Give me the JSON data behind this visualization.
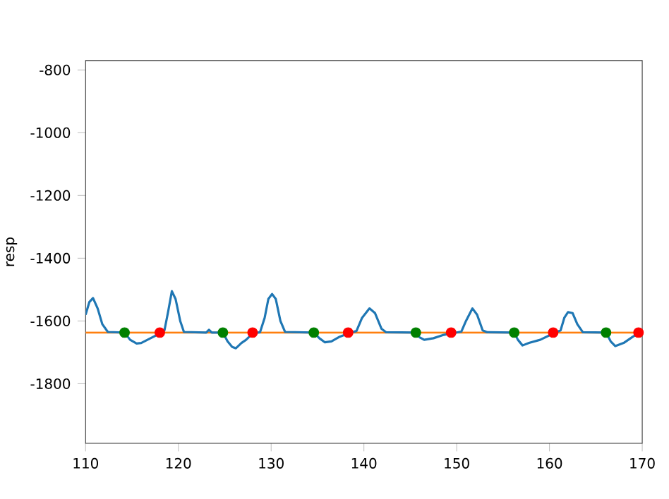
{
  "chart_data": {
    "type": "line",
    "ylabel": "resp",
    "xlim": [
      110,
      170
    ],
    "ylim": [
      -1990,
      -770
    ],
    "xticks": [
      110,
      120,
      130,
      140,
      150,
      160,
      170
    ],
    "yticks": [
      -800,
      -1000,
      -1200,
      -1400,
      -1600,
      -1800
    ],
    "grid": false,
    "ref_lines": [
      {
        "axis": "y",
        "value": -1637,
        "color": "#ff7f0e"
      }
    ],
    "series": [
      {
        "color": "#1f77b4",
        "marker": "none",
        "x": [
          110,
          110.4,
          110.8,
          111.3,
          111.8,
          112.4,
          114.2,
          114.8,
          115.5,
          116.0,
          117.0,
          118.0,
          118.5,
          118.9,
          119.3,
          119.7,
          120.2,
          120.6,
          123.0,
          123.3,
          123.6,
          124.8,
          125.3,
          125.8,
          126.2,
          126.8,
          127.3,
          128.0,
          128.8,
          129.3,
          129.7,
          130.1,
          130.5,
          131.0,
          131.5,
          134.6,
          135.2,
          135.8,
          136.5,
          137.4,
          138.3,
          139.2,
          139.8,
          140.6,
          141.2,
          141.9,
          142.4,
          145.6,
          146.0,
          146.5,
          147.5,
          148.5,
          149.4,
          150.5,
          151.0,
          151.7,
          152.2,
          152.8,
          153.3,
          156.2,
          156.6,
          157.1,
          157.8,
          159.0,
          160.4,
          161.2,
          161.6,
          162.0,
          162.5,
          163.0,
          163.6,
          166.1,
          166.6,
          167.1,
          168.0,
          169.0,
          169.6
        ],
        "values": [
          -1580,
          -1540,
          -1527,
          -1560,
          -1610,
          -1635,
          -1637,
          -1660,
          -1672,
          -1670,
          -1655,
          -1640,
          -1630,
          -1570,
          -1505,
          -1530,
          -1600,
          -1635,
          -1637,
          -1628,
          -1637,
          -1637,
          -1665,
          -1683,
          -1687,
          -1670,
          -1660,
          -1640,
          -1636,
          -1590,
          -1530,
          -1514,
          -1530,
          -1600,
          -1635,
          -1637,
          -1655,
          -1668,
          -1665,
          -1650,
          -1640,
          -1632,
          -1590,
          -1560,
          -1575,
          -1625,
          -1636,
          -1637,
          -1652,
          -1660,
          -1655,
          -1645,
          -1640,
          -1634,
          -1600,
          -1560,
          -1580,
          -1630,
          -1636,
          -1637,
          -1660,
          -1678,
          -1670,
          -1660,
          -1640,
          -1630,
          -1590,
          -1572,
          -1575,
          -1610,
          -1636,
          -1637,
          -1665,
          -1680,
          -1670,
          -1650,
          -1640
        ]
      },
      {
        "type": "scatter",
        "color": "#008000",
        "marker": "circle",
        "x": [
          114.2,
          124.8,
          134.6,
          145.6,
          156.2,
          166.1
        ],
        "values": [
          -1637,
          -1637,
          -1637,
          -1637,
          -1637,
          -1637
        ]
      },
      {
        "type": "scatter",
        "color": "#ff0000",
        "marker": "circle",
        "x": [
          118.0,
          128.0,
          138.3,
          149.4,
          160.4,
          169.6
        ],
        "values": [
          -1637,
          -1637,
          -1637,
          -1637,
          -1637,
          -1637
        ]
      }
    ]
  }
}
